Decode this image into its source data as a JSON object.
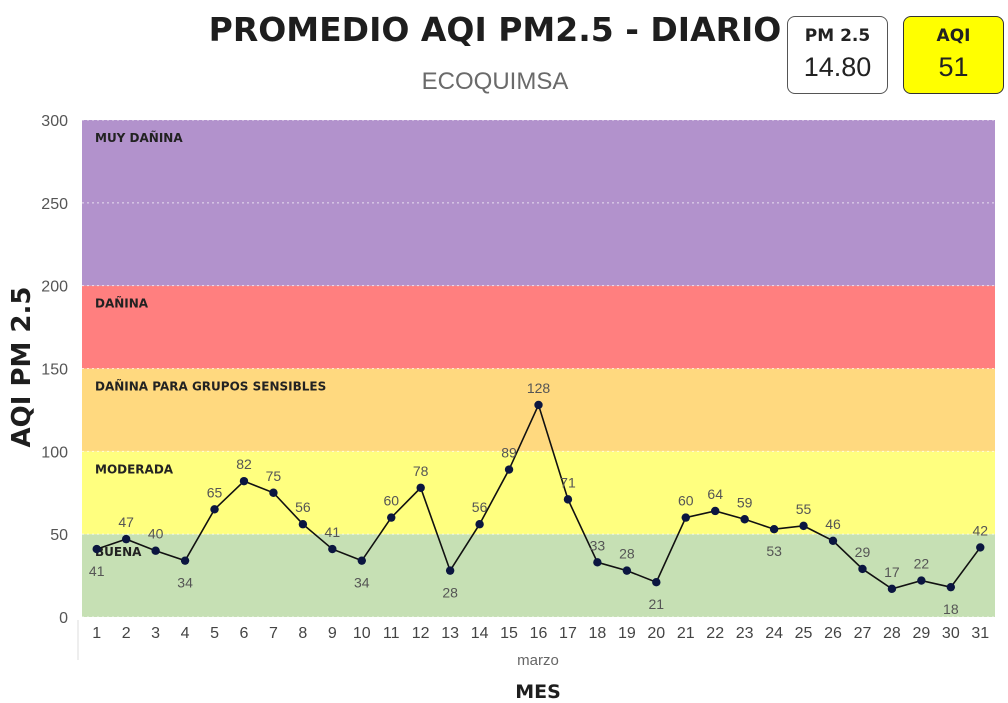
{
  "title": "PROMEDIO AQI PM2.5 - DIARIO",
  "subtitle": "ECOQUIMSA",
  "cards": {
    "pm": {
      "label": "PM 2.5",
      "value": "14.80",
      "bg": "#ffffff"
    },
    "aqi": {
      "label": "AQI",
      "value": "51",
      "bg": "#ffff00"
    }
  },
  "chart_data": {
    "type": "line",
    "ylabel": "AQI PM 2.5",
    "xlabel": "MES",
    "x_group_label": "marzo",
    "ylim": [
      0,
      300
    ],
    "yticks": [
      0,
      50,
      100,
      150,
      200,
      250,
      300
    ],
    "grid": true,
    "categories": [
      "1",
      "2",
      "3",
      "4",
      "5",
      "6",
      "7",
      "8",
      "9",
      "10",
      "11",
      "12",
      "13",
      "14",
      "15",
      "16",
      "17",
      "18",
      "19",
      "20",
      "21",
      "22",
      "23",
      "24",
      "25",
      "26",
      "27",
      "28",
      "29",
      "30",
      "31"
    ],
    "series": [
      {
        "values": [
          41,
          47,
          40,
          34,
          65,
          82,
          75,
          56,
          41,
          34,
          60,
          78,
          28,
          56,
          89,
          128,
          71,
          33,
          28,
          21,
          60,
          64,
          59,
          53,
          55,
          46,
          29,
          17,
          22,
          18,
          42
        ],
        "color": "#0b1640"
      }
    ],
    "label_positions": [
      "below",
      "above",
      "above",
      "below",
      "above",
      "above",
      "above",
      "above",
      "above",
      "below",
      "above",
      "above",
      "below",
      "above",
      "above",
      "above",
      "above",
      "above",
      "above",
      "below",
      "above",
      "above",
      "above",
      "below",
      "above",
      "above",
      "above",
      "above",
      "above",
      "below",
      "above"
    ],
    "bands": [
      {
        "label": "BUENA",
        "from": 0,
        "to": 50,
        "color": "#c6e0b4"
      },
      {
        "label": "MODERADA",
        "from": 50,
        "to": 100,
        "color": "#ffff7f"
      },
      {
        "label": "DAÑINA PARA GRUPOS SENSIBLES",
        "from": 100,
        "to": 150,
        "color": "#ffd97f"
      },
      {
        "label": "DAÑINA",
        "from": 150,
        "to": 200,
        "color": "#ff7f7f"
      },
      {
        "label": "MUY DAÑINA",
        "from": 200,
        "to": 300,
        "color": "#b292cc"
      }
    ]
  }
}
